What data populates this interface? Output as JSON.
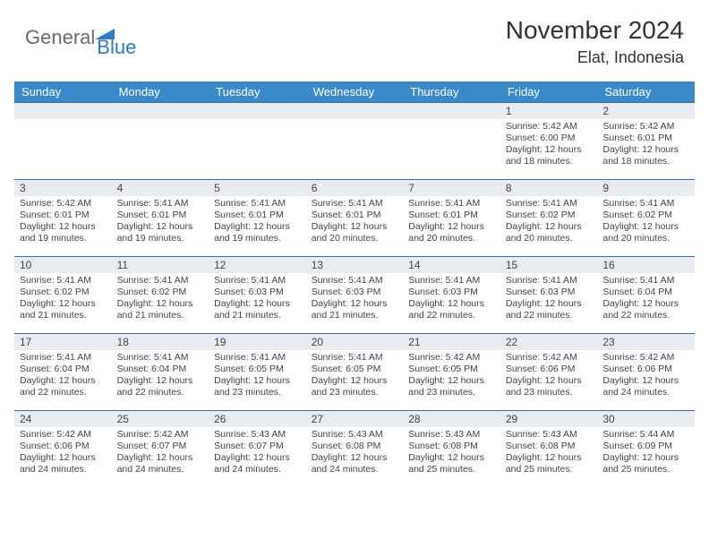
{
  "logo": {
    "part1": "General",
    "part2": "Blue"
  },
  "title": "November 2024",
  "location": "Elat, Indonesia",
  "weekdays": [
    "Sunday",
    "Monday",
    "Tuesday",
    "Wednesday",
    "Thursday",
    "Friday",
    "Saturday"
  ],
  "colors": {
    "header_bg": "#3a89c9",
    "header_text": "#ffffff",
    "daynum_bg": "#e8ebef",
    "border": "#3a6fa5",
    "logo_gray": "#6b6b6b",
    "logo_blue": "#2f7dc4"
  },
  "weeks": [
    [
      {
        "n": "",
        "sr": "",
        "ss": "",
        "dl": ""
      },
      {
        "n": "",
        "sr": "",
        "ss": "",
        "dl": ""
      },
      {
        "n": "",
        "sr": "",
        "ss": "",
        "dl": ""
      },
      {
        "n": "",
        "sr": "",
        "ss": "",
        "dl": ""
      },
      {
        "n": "",
        "sr": "",
        "ss": "",
        "dl": ""
      },
      {
        "n": "1",
        "sr": "Sunrise: 5:42 AM",
        "ss": "Sunset: 6:00 PM",
        "dl": "Daylight: 12 hours and 18 minutes."
      },
      {
        "n": "2",
        "sr": "Sunrise: 5:42 AM",
        "ss": "Sunset: 6:01 PM",
        "dl": "Daylight: 12 hours and 18 minutes."
      }
    ],
    [
      {
        "n": "3",
        "sr": "Sunrise: 5:42 AM",
        "ss": "Sunset: 6:01 PM",
        "dl": "Daylight: 12 hours and 19 minutes."
      },
      {
        "n": "4",
        "sr": "Sunrise: 5:41 AM",
        "ss": "Sunset: 6:01 PM",
        "dl": "Daylight: 12 hours and 19 minutes."
      },
      {
        "n": "5",
        "sr": "Sunrise: 5:41 AM",
        "ss": "Sunset: 6:01 PM",
        "dl": "Daylight: 12 hours and 19 minutes."
      },
      {
        "n": "6",
        "sr": "Sunrise: 5:41 AM",
        "ss": "Sunset: 6:01 PM",
        "dl": "Daylight: 12 hours and 20 minutes."
      },
      {
        "n": "7",
        "sr": "Sunrise: 5:41 AM",
        "ss": "Sunset: 6:01 PM",
        "dl": "Daylight: 12 hours and 20 minutes."
      },
      {
        "n": "8",
        "sr": "Sunrise: 5:41 AM",
        "ss": "Sunset: 6:02 PM",
        "dl": "Daylight: 12 hours and 20 minutes."
      },
      {
        "n": "9",
        "sr": "Sunrise: 5:41 AM",
        "ss": "Sunset: 6:02 PM",
        "dl": "Daylight: 12 hours and 20 minutes."
      }
    ],
    [
      {
        "n": "10",
        "sr": "Sunrise: 5:41 AM",
        "ss": "Sunset: 6:02 PM",
        "dl": "Daylight: 12 hours and 21 minutes."
      },
      {
        "n": "11",
        "sr": "Sunrise: 5:41 AM",
        "ss": "Sunset: 6:02 PM",
        "dl": "Daylight: 12 hours and 21 minutes."
      },
      {
        "n": "12",
        "sr": "Sunrise: 5:41 AM",
        "ss": "Sunset: 6:03 PM",
        "dl": "Daylight: 12 hours and 21 minutes."
      },
      {
        "n": "13",
        "sr": "Sunrise: 5:41 AM",
        "ss": "Sunset: 6:03 PM",
        "dl": "Daylight: 12 hours and 21 minutes."
      },
      {
        "n": "14",
        "sr": "Sunrise: 5:41 AM",
        "ss": "Sunset: 6:03 PM",
        "dl": "Daylight: 12 hours and 22 minutes."
      },
      {
        "n": "15",
        "sr": "Sunrise: 5:41 AM",
        "ss": "Sunset: 6:03 PM",
        "dl": "Daylight: 12 hours and 22 minutes."
      },
      {
        "n": "16",
        "sr": "Sunrise: 5:41 AM",
        "ss": "Sunset: 6:04 PM",
        "dl": "Daylight: 12 hours and 22 minutes."
      }
    ],
    [
      {
        "n": "17",
        "sr": "Sunrise: 5:41 AM",
        "ss": "Sunset: 6:04 PM",
        "dl": "Daylight: 12 hours and 22 minutes."
      },
      {
        "n": "18",
        "sr": "Sunrise: 5:41 AM",
        "ss": "Sunset: 6:04 PM",
        "dl": "Daylight: 12 hours and 22 minutes."
      },
      {
        "n": "19",
        "sr": "Sunrise: 5:41 AM",
        "ss": "Sunset: 6:05 PM",
        "dl": "Daylight: 12 hours and 23 minutes."
      },
      {
        "n": "20",
        "sr": "Sunrise: 5:41 AM",
        "ss": "Sunset: 6:05 PM",
        "dl": "Daylight: 12 hours and 23 minutes."
      },
      {
        "n": "21",
        "sr": "Sunrise: 5:42 AM",
        "ss": "Sunset: 6:05 PM",
        "dl": "Daylight: 12 hours and 23 minutes."
      },
      {
        "n": "22",
        "sr": "Sunrise: 5:42 AM",
        "ss": "Sunset: 6:06 PM",
        "dl": "Daylight: 12 hours and 23 minutes."
      },
      {
        "n": "23",
        "sr": "Sunrise: 5:42 AM",
        "ss": "Sunset: 6:06 PM",
        "dl": "Daylight: 12 hours and 24 minutes."
      }
    ],
    [
      {
        "n": "24",
        "sr": "Sunrise: 5:42 AM",
        "ss": "Sunset: 6:06 PM",
        "dl": "Daylight: 12 hours and 24 minutes."
      },
      {
        "n": "25",
        "sr": "Sunrise: 5:42 AM",
        "ss": "Sunset: 6:07 PM",
        "dl": "Daylight: 12 hours and 24 minutes."
      },
      {
        "n": "26",
        "sr": "Sunrise: 5:43 AM",
        "ss": "Sunset: 6:07 PM",
        "dl": "Daylight: 12 hours and 24 minutes."
      },
      {
        "n": "27",
        "sr": "Sunrise: 5:43 AM",
        "ss": "Sunset: 6:08 PM",
        "dl": "Daylight: 12 hours and 24 minutes."
      },
      {
        "n": "28",
        "sr": "Sunrise: 5:43 AM",
        "ss": "Sunset: 6:08 PM",
        "dl": "Daylight: 12 hours and 25 minutes."
      },
      {
        "n": "29",
        "sr": "Sunrise: 5:43 AM",
        "ss": "Sunset: 6:08 PM",
        "dl": "Daylight: 12 hours and 25 minutes."
      },
      {
        "n": "30",
        "sr": "Sunrise: 5:44 AM",
        "ss": "Sunset: 6:09 PM",
        "dl": "Daylight: 12 hours and 25 minutes."
      }
    ]
  ]
}
